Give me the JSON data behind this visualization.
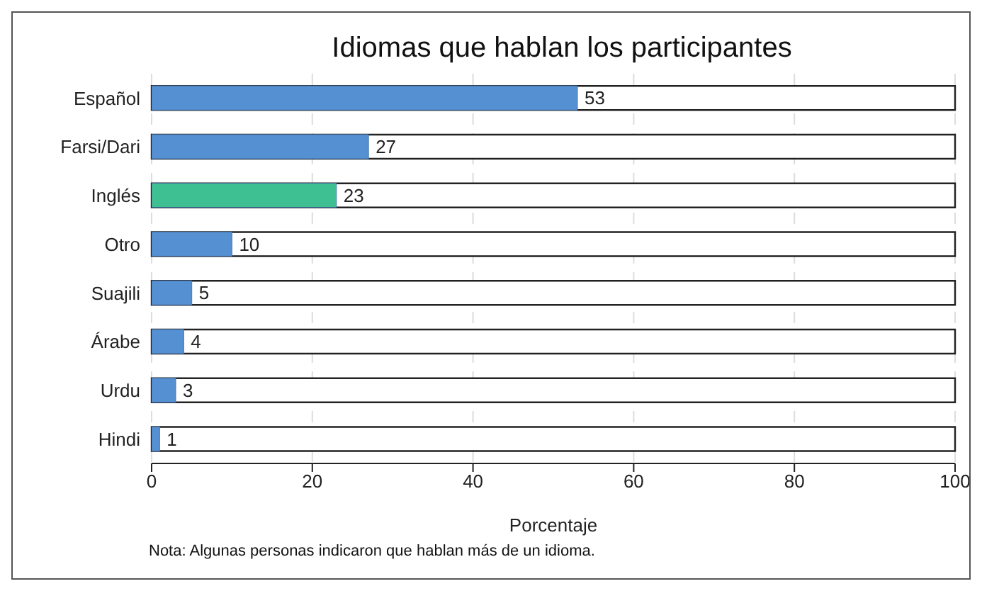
{
  "chart_data": {
    "type": "bar",
    "orientation": "horizontal",
    "title": "Idiomas que hablan los participantes",
    "xlabel": "Porcentaje",
    "categories": [
      "Español",
      "Farsi/Dari",
      "Inglés",
      "Otro",
      "Suajili",
      "Árabe",
      "Urdu",
      "Hindi"
    ],
    "values": [
      53,
      27,
      23,
      10,
      5,
      4,
      3,
      1
    ],
    "colors": [
      "#5590d3",
      "#5590d3",
      "#3fc093",
      "#5590d3",
      "#5590d3",
      "#5590d3",
      "#5590d3",
      "#5590d3"
    ],
    "xlim": [
      0,
      100
    ],
    "xticks": [
      0,
      20,
      40,
      60,
      80,
      100
    ],
    "grid": "x",
    "data_labels": true,
    "annotations": [
      "Nota: Algunas personas indicaron que hablan más de un idioma."
    ]
  }
}
